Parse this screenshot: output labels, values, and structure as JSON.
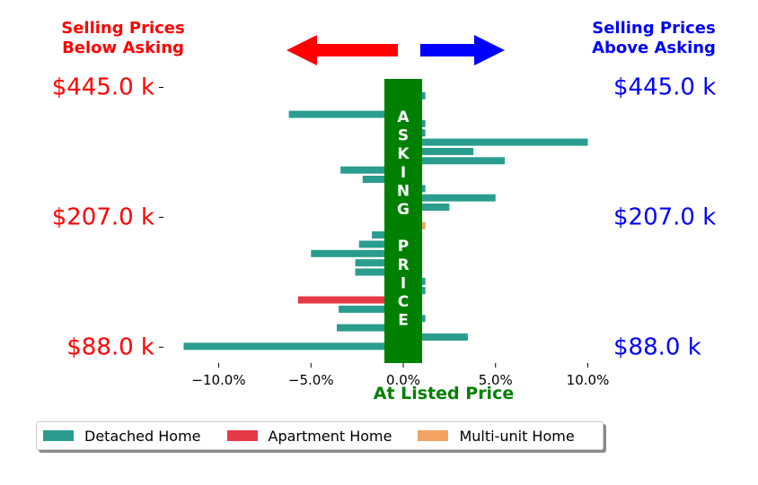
{
  "header": {
    "left": "Selling Prices\nBelow Asking",
    "right": "Selling Prices\nAbove Asking",
    "left_color": "#ff0000",
    "right_color": "#0000ff",
    "left_arrow_color": "#ff0000",
    "right_arrow_color": "#0000ff"
  },
  "center_band": {
    "letters": [
      "A",
      "S",
      "K",
      "I",
      "N",
      "G",
      "",
      "P",
      "R",
      "I",
      "C",
      "E"
    ],
    "color": "#008000",
    "caption": "At Listed Price",
    "caption_color": "#008000"
  },
  "legend": {
    "items": [
      {
        "label": "Detached Home",
        "color": "#2a9d8f"
      },
      {
        "label": "Apartment Home",
        "color": "#e63946"
      },
      {
        "label": "Multi-unit Home",
        "color": "#f4a261"
      }
    ]
  },
  "chart_data": {
    "type": "bar",
    "orientation": "horizontal",
    "x_ticks": [
      "−10.0%",
      "−5.0%",
      "0.0%",
      "5.0%",
      "10.0%"
    ],
    "xlim": [
      -12.0,
      11.0
    ],
    "y_ticks_left": [
      "$445.0 k",
      "$207.0 k",
      "$88.0 k"
    ],
    "y_ticks_right": [
      "$445.0 k",
      "$207.0 k",
      "$88.0 k"
    ],
    "y_tick_rows": [
      0,
      14,
      28
    ],
    "colors": {
      "Detached Home": "#2a9d8f",
      "Apartment Home": "#e63946",
      "Multi-unit Home": "#f4a261"
    },
    "bars": [
      {
        "row": 1,
        "value": 1.2,
        "type": "Detached Home"
      },
      {
        "row": 3,
        "value": -6.2,
        "type": "Detached Home"
      },
      {
        "row": 4,
        "value": 1.2,
        "type": "Detached Home"
      },
      {
        "row": 5,
        "value": 1.2,
        "type": "Detached Home"
      },
      {
        "row": 6,
        "value": 10.0,
        "type": "Detached Home"
      },
      {
        "row": 7,
        "value": 3.8,
        "type": "Detached Home"
      },
      {
        "row": 8,
        "value": 5.5,
        "type": "Detached Home"
      },
      {
        "row": 9,
        "value": -3.4,
        "type": "Detached Home"
      },
      {
        "row": 10,
        "value": -2.2,
        "type": "Detached Home"
      },
      {
        "row": 11,
        "value": 1.2,
        "type": "Detached Home"
      },
      {
        "row": 12,
        "value": 5.0,
        "type": "Detached Home"
      },
      {
        "row": 13,
        "value": 2.5,
        "type": "Detached Home"
      },
      {
        "row": 15,
        "value": 1.2,
        "type": "Multi-unit Home"
      },
      {
        "row": 16,
        "value": -1.7,
        "type": "Detached Home"
      },
      {
        "row": 17,
        "value": -2.4,
        "type": "Detached Home"
      },
      {
        "row": 18,
        "value": -5.0,
        "type": "Detached Home"
      },
      {
        "row": 19,
        "value": -2.6,
        "type": "Detached Home"
      },
      {
        "row": 20,
        "value": -2.6,
        "type": "Detached Home"
      },
      {
        "row": 21,
        "value": 1.2,
        "type": "Detached Home"
      },
      {
        "row": 22,
        "value": 1.2,
        "type": "Detached Home"
      },
      {
        "row": 23,
        "value": -5.7,
        "type": "Apartment Home"
      },
      {
        "row": 24,
        "value": -3.5,
        "type": "Detached Home"
      },
      {
        "row": 25,
        "value": 1.2,
        "type": "Detached Home"
      },
      {
        "row": 26,
        "value": -3.6,
        "type": "Detached Home"
      },
      {
        "row": 27,
        "value": 3.5,
        "type": "Detached Home"
      },
      {
        "row": 28,
        "value": -11.9,
        "type": "Detached Home"
      }
    ]
  }
}
